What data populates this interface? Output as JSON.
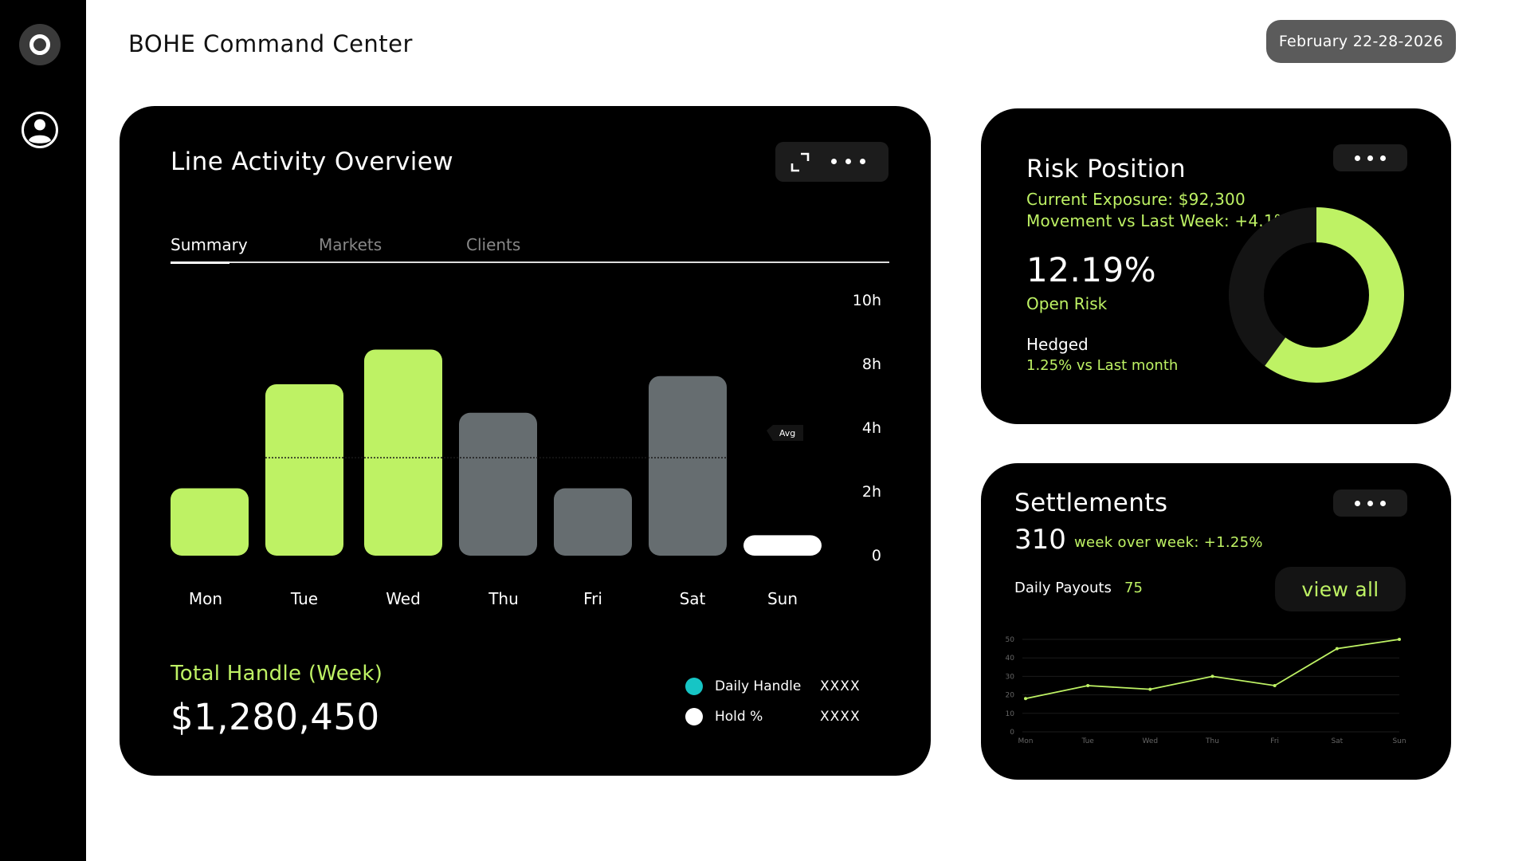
{
  "app": {
    "title": "BOHE Command Center",
    "date_range": "February 22-28-2026"
  },
  "sidebar": {
    "icons": [
      "logo-ring-icon",
      "user-profile-icon"
    ]
  },
  "line_activity": {
    "title": "Line Activity Overview",
    "tabs": [
      {
        "label": "Summary",
        "active": true
      },
      {
        "label": "Markets",
        "active": false
      },
      {
        "label": "Clients",
        "active": false
      }
    ],
    "avg_label": "Avg",
    "total_label": "Total Handle (Week)",
    "total_value": "$1,280,450",
    "legend": [
      {
        "label": "Daily Handle",
        "value": "XXXX",
        "color": "#16c5c5"
      },
      {
        "label": "Hold %",
        "value": "XXXX",
        "color": "#ffffff"
      }
    ]
  },
  "chart_data": [
    {
      "type": "bar",
      "categories": [
        "Mon",
        "Tue",
        "Wed",
        "Thu",
        "Fri",
        "Sat",
        "Sun"
      ],
      "values": [
        3.3,
        8.4,
        10.1,
        7.0,
        3.3,
        8.8,
        1.0
      ],
      "colors": [
        "#bef264",
        "#bef264",
        "#bef264",
        "#666d70",
        "#666d70",
        "#666d70",
        "#ffffff"
      ],
      "y_ticks": [
        "0",
        "2h",
        "4h",
        "8h",
        "10h"
      ],
      "avg_value": 4.8,
      "avg_label": "Avg",
      "axis_position": "right",
      "grid": false
    },
    {
      "type": "line",
      "categories": [
        "Mon",
        "Tue",
        "Wed",
        "Thu",
        "Fri",
        "Sat",
        "Sun"
      ],
      "values": [
        18,
        25,
        23,
        30,
        25,
        45,
        50
      ],
      "y_ticks": [
        0,
        10,
        20,
        30,
        40,
        50
      ],
      "ylim": [
        0,
        50
      ],
      "color": "#bef264",
      "grid": true
    }
  ],
  "risk": {
    "title": "Risk Position",
    "exposure": "Current Exposure: $92,300",
    "movement": "Movement vs Last Week: +4.1%",
    "open_risk_pct": "12.19%",
    "open_risk_label": "Open Risk",
    "hedged_label": "Hedged",
    "hedged_sub": "1.25% vs Last month",
    "donut_fraction": 0.6,
    "donut_color": "#bef264",
    "donut_track_color": "#141414"
  },
  "settlements": {
    "title": "Settlements",
    "count": "310",
    "wow": "week over week: +1.25%",
    "daily_payouts_label": "Daily Payouts",
    "daily_payouts_value": "75",
    "view_all_label": "view all"
  },
  "colors": {
    "accent": "#bef264",
    "gray_bar": "#666d70",
    "card_bg": "#000000"
  }
}
